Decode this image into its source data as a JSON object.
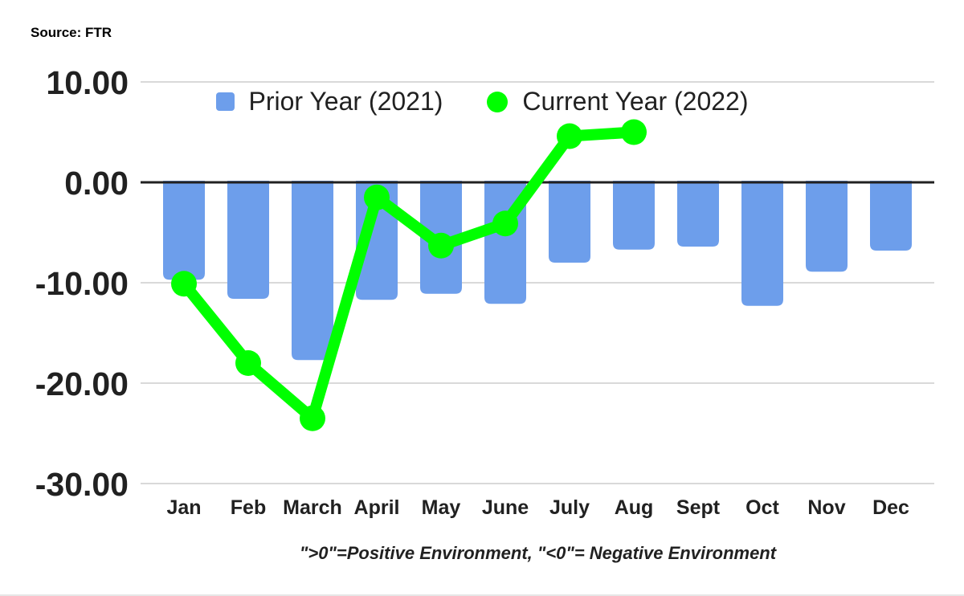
{
  "header": {
    "source": "Source: FTR"
  },
  "footer": {
    "note": "\">0\"=Positive Environment, \"<0\"= Negative Environment"
  },
  "colors": {
    "bar": "#6d9eeb",
    "line": "#00ff00",
    "ink": "#212121",
    "grid": "#d9d9d9",
    "background": "#ffffff"
  },
  "chart_data": {
    "type": "bar+line combo",
    "title": "",
    "xlabel": "",
    "ylabel": "",
    "categories": [
      "Jan",
      "Feb",
      "March",
      "April",
      "May",
      "June",
      "July",
      "Aug",
      "Sept",
      "Oct",
      "Nov",
      "Dec"
    ],
    "series": [
      {
        "name": "Prior Year (2021)",
        "type": "bar",
        "color": "#6d9eeb",
        "values": [
          -9.7,
          -11.6,
          -17.7,
          -11.7,
          -11.1,
          -12.1,
          -8.0,
          -6.7,
          -6.4,
          -12.3,
          -8.9,
          -6.8
        ]
      },
      {
        "name": "Current Year (2022)",
        "type": "line",
        "color": "#00ff00",
        "values": [
          -10.1,
          -18.0,
          -23.5,
          -1.5,
          -6.3,
          -4.1,
          4.6,
          5.0,
          null,
          null,
          null,
          null
        ]
      }
    ],
    "ylim": [
      -30,
      10
    ],
    "yticks": [
      10,
      0,
      -10,
      -20,
      -30
    ],
    "ytick_labels": [
      "10.00",
      "0.00",
      "-10.00",
      "-20.00",
      "-30.00"
    ],
    "grid": true,
    "zero_axis": true,
    "legend_position": "top-center"
  }
}
